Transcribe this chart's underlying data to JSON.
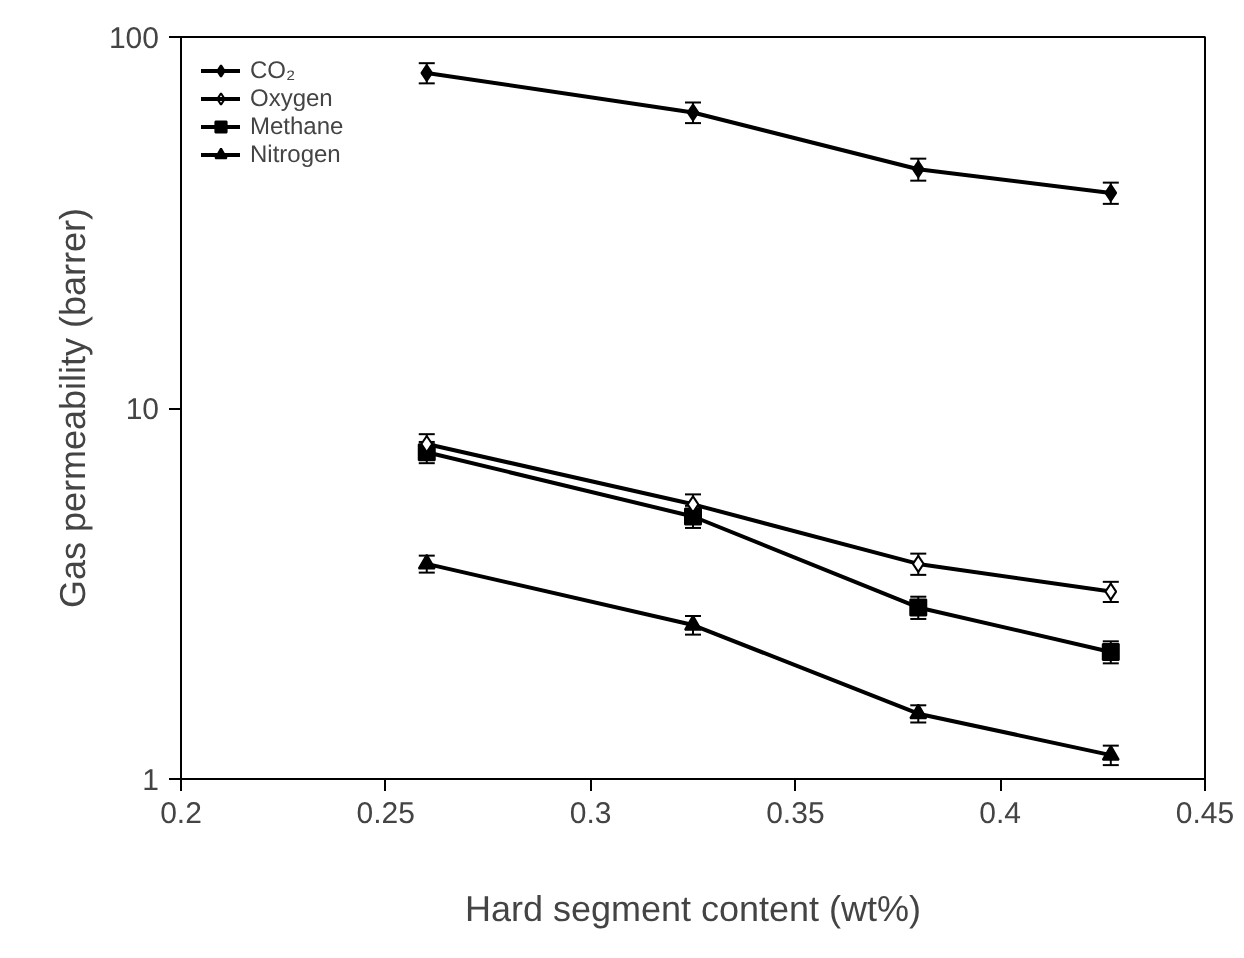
{
  "chart_data": {
    "type": "line",
    "xlabel": "Hard segment content (wt%)",
    "ylabel": "Gas permeability (barrer)",
    "x": [
      0.26,
      0.325,
      0.38,
      0.427
    ],
    "series": [
      {
        "name": "CO₂",
        "color": "#000000",
        "marker": "diamond",
        "values": [
          80,
          62.6,
          44,
          38
        ],
        "errors": [
          5,
          4,
          3,
          2.5
        ]
      },
      {
        "name": "Oxygen",
        "color": "#000000",
        "marker": "diamond_open",
        "values": [
          8.0,
          5.5,
          3.8,
          3.2
        ],
        "errors": [
          0.5,
          0.35,
          0.25,
          0.2
        ]
      },
      {
        "name": "Methane",
        "color": "#000000",
        "marker": "square",
        "values": [
          7.6,
          5.1,
          2.9,
          2.2
        ],
        "errors": [
          0.5,
          0.35,
          0.2,
          0.15
        ]
      },
      {
        "name": "Nitrogen",
        "color": "#000000",
        "marker": "triangle",
        "values": [
          3.8,
          2.6,
          1.5,
          1.16
        ],
        "errors": [
          0.2,
          0.15,
          0.08,
          0.07
        ]
      }
    ],
    "xlim": [
      0.2,
      0.45
    ],
    "xticks": [
      0.2,
      0.25,
      0.3,
      0.35,
      0.4,
      0.45
    ],
    "ylim": [
      1,
      100
    ],
    "yticks": [
      1,
      10,
      100
    ],
    "log": "y",
    "grid": false,
    "legend": "top left",
    "line_style": "solid"
  }
}
